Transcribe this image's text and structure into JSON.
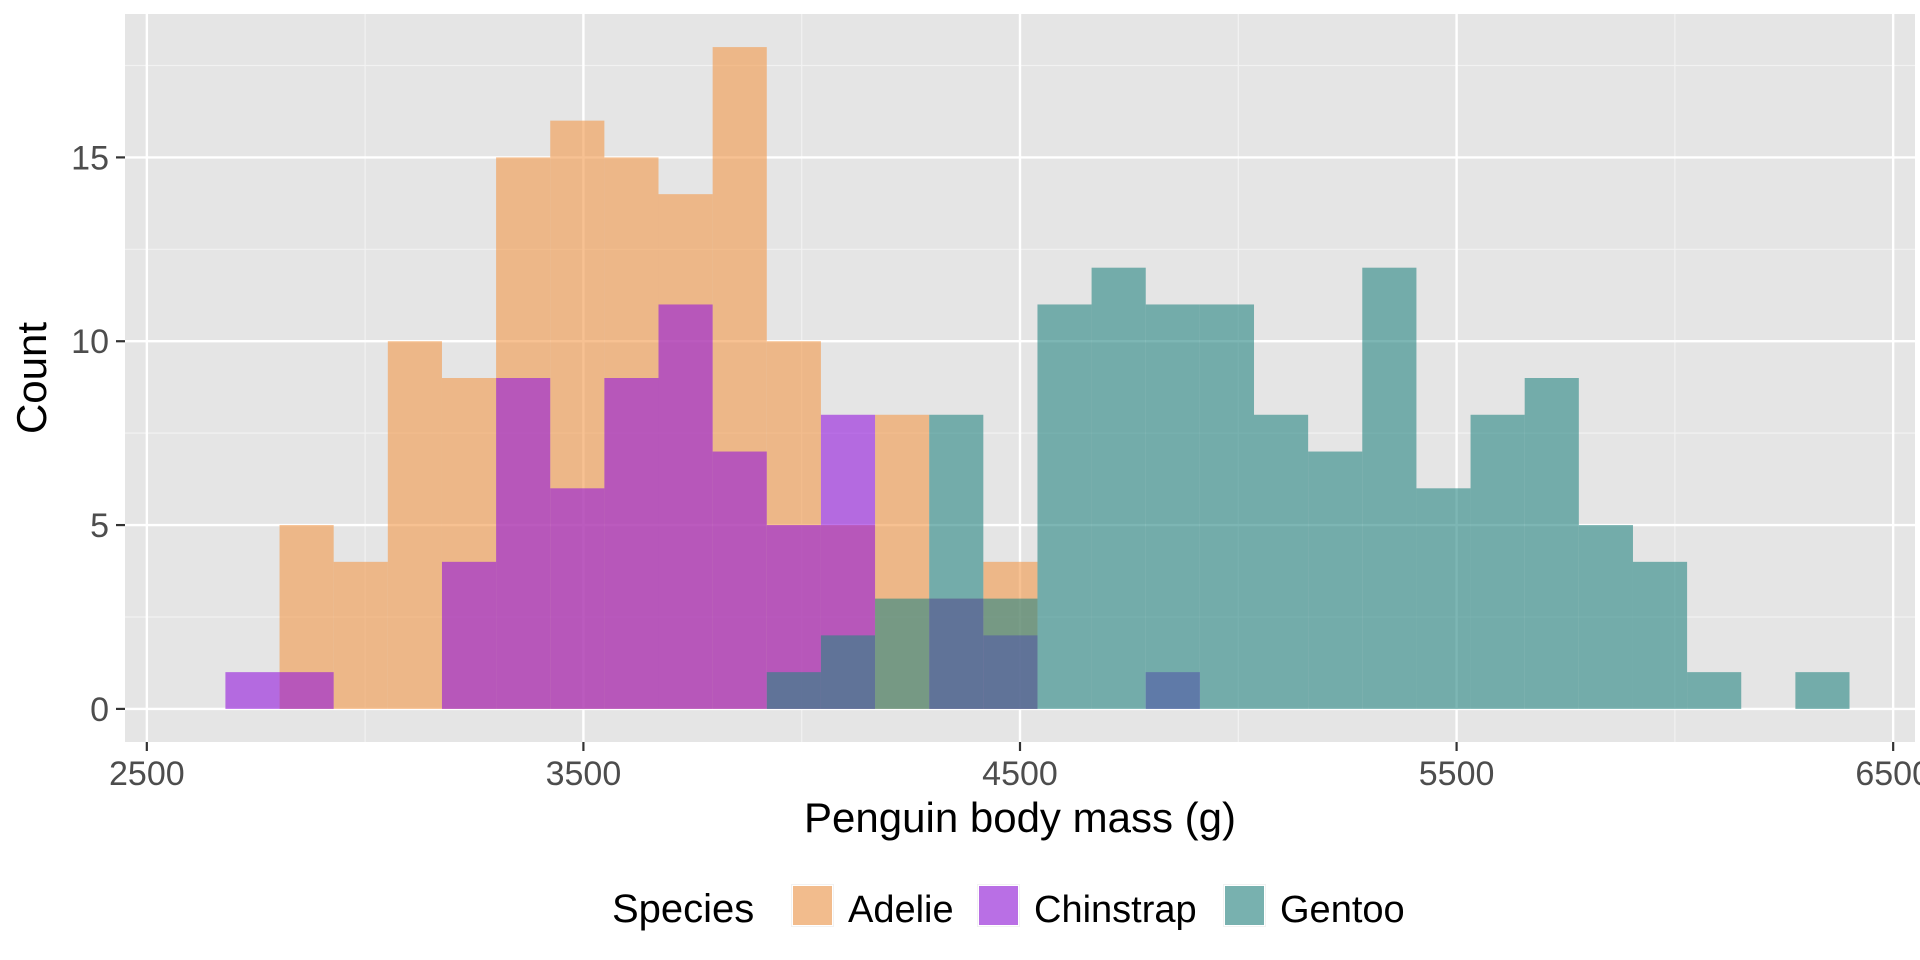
{
  "chart_data": {
    "type": "bar",
    "subtype": "overlapping-histogram",
    "xlabel": "Penguin body mass (g)",
    "ylabel": "Count",
    "xlim": [
      2500,
      6500
    ],
    "ylim": [
      0,
      18
    ],
    "x_ticks": [
      2500,
      3500,
      4500,
      5500,
      6500
    ],
    "y_ticks": [
      0,
      5,
      10,
      15
    ],
    "grid": true,
    "legend": {
      "title": "Species",
      "position": "bottom",
      "entries": [
        "Adelie",
        "Chinstrap",
        "Gentoo"
      ]
    },
    "bin_width": 124,
    "bin_start": 2680,
    "opacity": 0.6,
    "series": [
      {
        "name": "Adelie",
        "color": "#f2974a",
        "bins": [
          {
            "x": 2804,
            "count": 5
          },
          {
            "x": 2928,
            "count": 4
          },
          {
            "x": 3052,
            "count": 10
          },
          {
            "x": 3176,
            "count": 9
          },
          {
            "x": 3300,
            "count": 15
          },
          {
            "x": 3424,
            "count": 16
          },
          {
            "x": 3548,
            "count": 15
          },
          {
            "x": 3672,
            "count": 14
          },
          {
            "x": 3796,
            "count": 18
          },
          {
            "x": 3920,
            "count": 10
          },
          {
            "x": 4044,
            "count": 5
          },
          {
            "x": 4168,
            "count": 8
          },
          {
            "x": 4292,
            "count": 3
          },
          {
            "x": 4416,
            "count": 4
          }
        ]
      },
      {
        "name": "Chinstrap",
        "color": "#9218dc",
        "bins": [
          {
            "x": 2680,
            "count": 1
          },
          {
            "x": 2804,
            "count": 1
          },
          {
            "x": 3176,
            "count": 4
          },
          {
            "x": 3300,
            "count": 9
          },
          {
            "x": 3424,
            "count": 6
          },
          {
            "x": 3548,
            "count": 9
          },
          {
            "x": 3672,
            "count": 11
          },
          {
            "x": 3796,
            "count": 7
          },
          {
            "x": 3920,
            "count": 5
          },
          {
            "x": 4044,
            "count": 8
          },
          {
            "x": 4292,
            "count": 3
          },
          {
            "x": 4416,
            "count": 2
          },
          {
            "x": 4788,
            "count": 1
          }
        ]
      },
      {
        "name": "Gentoo",
        "color": "#278682",
        "bins": [
          {
            "x": 3920,
            "count": 1
          },
          {
            "x": 4044,
            "count": 2
          },
          {
            "x": 4168,
            "count": 3
          },
          {
            "x": 4292,
            "count": 8
          },
          {
            "x": 4416,
            "count": 3
          },
          {
            "x": 4540,
            "count": 11
          },
          {
            "x": 4664,
            "count": 12
          },
          {
            "x": 4788,
            "count": 11
          },
          {
            "x": 4912,
            "count": 11
          },
          {
            "x": 5036,
            "count": 8
          },
          {
            "x": 5160,
            "count": 7
          },
          {
            "x": 5284,
            "count": 12
          },
          {
            "x": 5408,
            "count": 6
          },
          {
            "x": 5532,
            "count": 8
          },
          {
            "x": 5656,
            "count": 9
          },
          {
            "x": 5780,
            "count": 5
          },
          {
            "x": 5904,
            "count": 4
          },
          {
            "x": 6028,
            "count": 1
          },
          {
            "x": 6276,
            "count": 1
          }
        ]
      }
    ]
  }
}
